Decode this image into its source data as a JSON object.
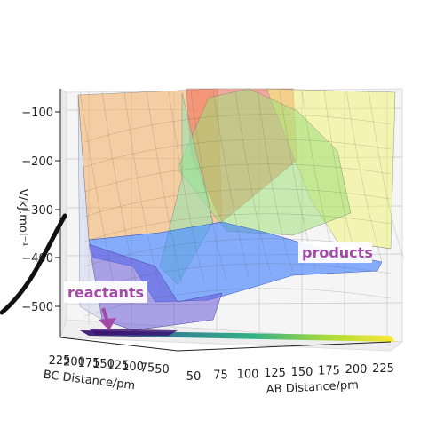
{
  "chart_data": {
    "type": "surface",
    "title": "",
    "xlabel": "AB Distance/pm",
    "ylabel": "BC Distance/pm",
    "zlabel": "V/kJ.mol⁻¹",
    "x_ticks": [
      "50",
      "75",
      "100",
      "125",
      "150",
      "175",
      "200",
      "225"
    ],
    "y_ticks": [
      "225",
      "200",
      "175",
      "150",
      "125",
      "100",
      "75",
      "50"
    ],
    "z_ticks": [
      "−100",
      "−200",
      "−300",
      "−400",
      "−500"
    ],
    "xlim": [
      50,
      225
    ],
    "ylim": [
      50,
      225
    ],
    "zlim": [
      -560,
      -80
    ],
    "colormap": "jet",
    "surface_alpha": 0.45,
    "contour_colormap": "viridis",
    "grid": true,
    "annotations": [
      {
        "text": "reactants",
        "color": "#a34aa8",
        "arrow": "down"
      },
      {
        "text": "products",
        "color": "#a34aa8"
      }
    ]
  }
}
